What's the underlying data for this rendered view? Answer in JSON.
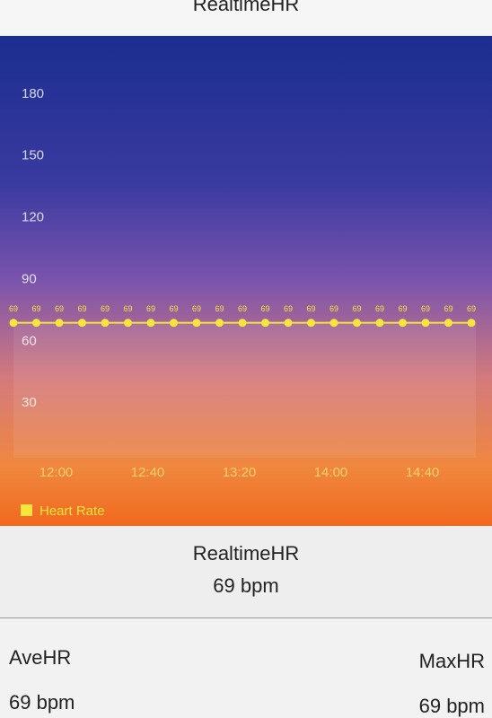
{
  "header": {
    "title": "RealtimeHR"
  },
  "chart_data": {
    "type": "line",
    "categories": [
      null,
      "12:00",
      null,
      null,
      null,
      "12:40",
      null,
      null,
      null,
      "13:20",
      null,
      null,
      null,
      "14:00",
      null,
      null,
      null,
      "14:40",
      null,
      null,
      null
    ],
    "series": [
      {
        "name": "Heart Rate",
        "color": "#f7e43c",
        "values": [
          69,
          69,
          69,
          69,
          69,
          69,
          69,
          69,
          69,
          69,
          69,
          69,
          69,
          69,
          69,
          69,
          69,
          69,
          69,
          69,
          69
        ]
      }
    ],
    "ylim": [
      0,
      200
    ],
    "yticks": [
      30,
      60,
      90,
      120,
      150,
      180
    ],
    "grid": false,
    "legend": "bottom-left"
  },
  "stats": {
    "realtime": {
      "label": "RealtimeHR",
      "value": "69 bpm"
    },
    "average": {
      "label": "AveHR",
      "value": "69 bpm"
    },
    "maximum": {
      "label": "MaxHR",
      "value": "69 bpm"
    }
  }
}
